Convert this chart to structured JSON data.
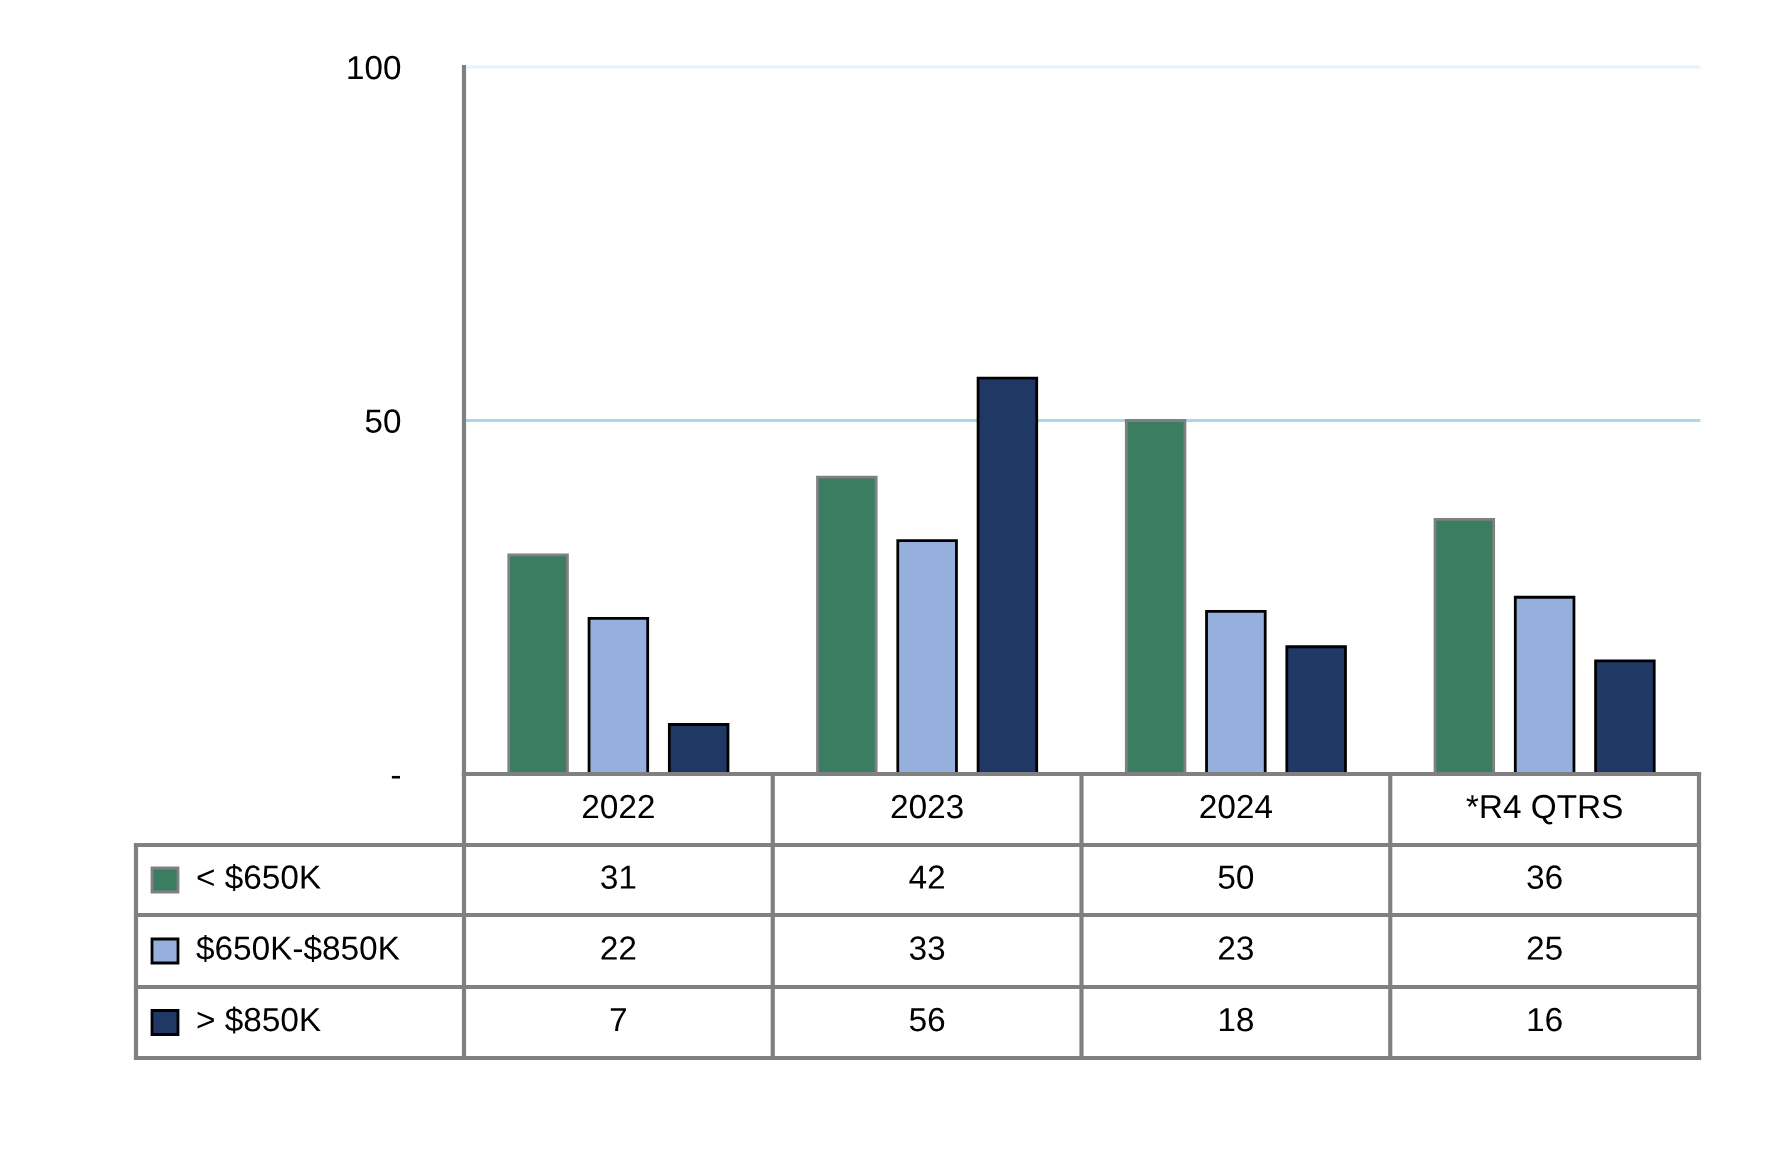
{
  "chart_data": {
    "type": "bar",
    "categories": [
      "2022",
      "2023",
      "2024",
      "*R4 QTRS"
    ],
    "series": [
      {
        "name": "< $650K",
        "color": "#3a7d60",
        "values": [
          31,
          42,
          50,
          36
        ]
      },
      {
        "name": "$650K-$850K",
        "color": "#95b0dc",
        "values": [
          22,
          33,
          23,
          25
        ]
      },
      {
        "name": "> $850K",
        "color": "#203864",
        "values": [
          7,
          56,
          18,
          16
        ]
      }
    ],
    "ylim": [
      0,
      100
    ],
    "yticks": [
      {
        "value": 0,
        "label": "-"
      },
      50,
      100
    ],
    "ref_lines": [
      {
        "axis": "y",
        "value": 50,
        "color": "#a6d8ee"
      },
      {
        "axis": "y",
        "value": 100,
        "color": "#e6f3fa"
      }
    ],
    "data_labels": true,
    "legend": "bottom left"
  }
}
